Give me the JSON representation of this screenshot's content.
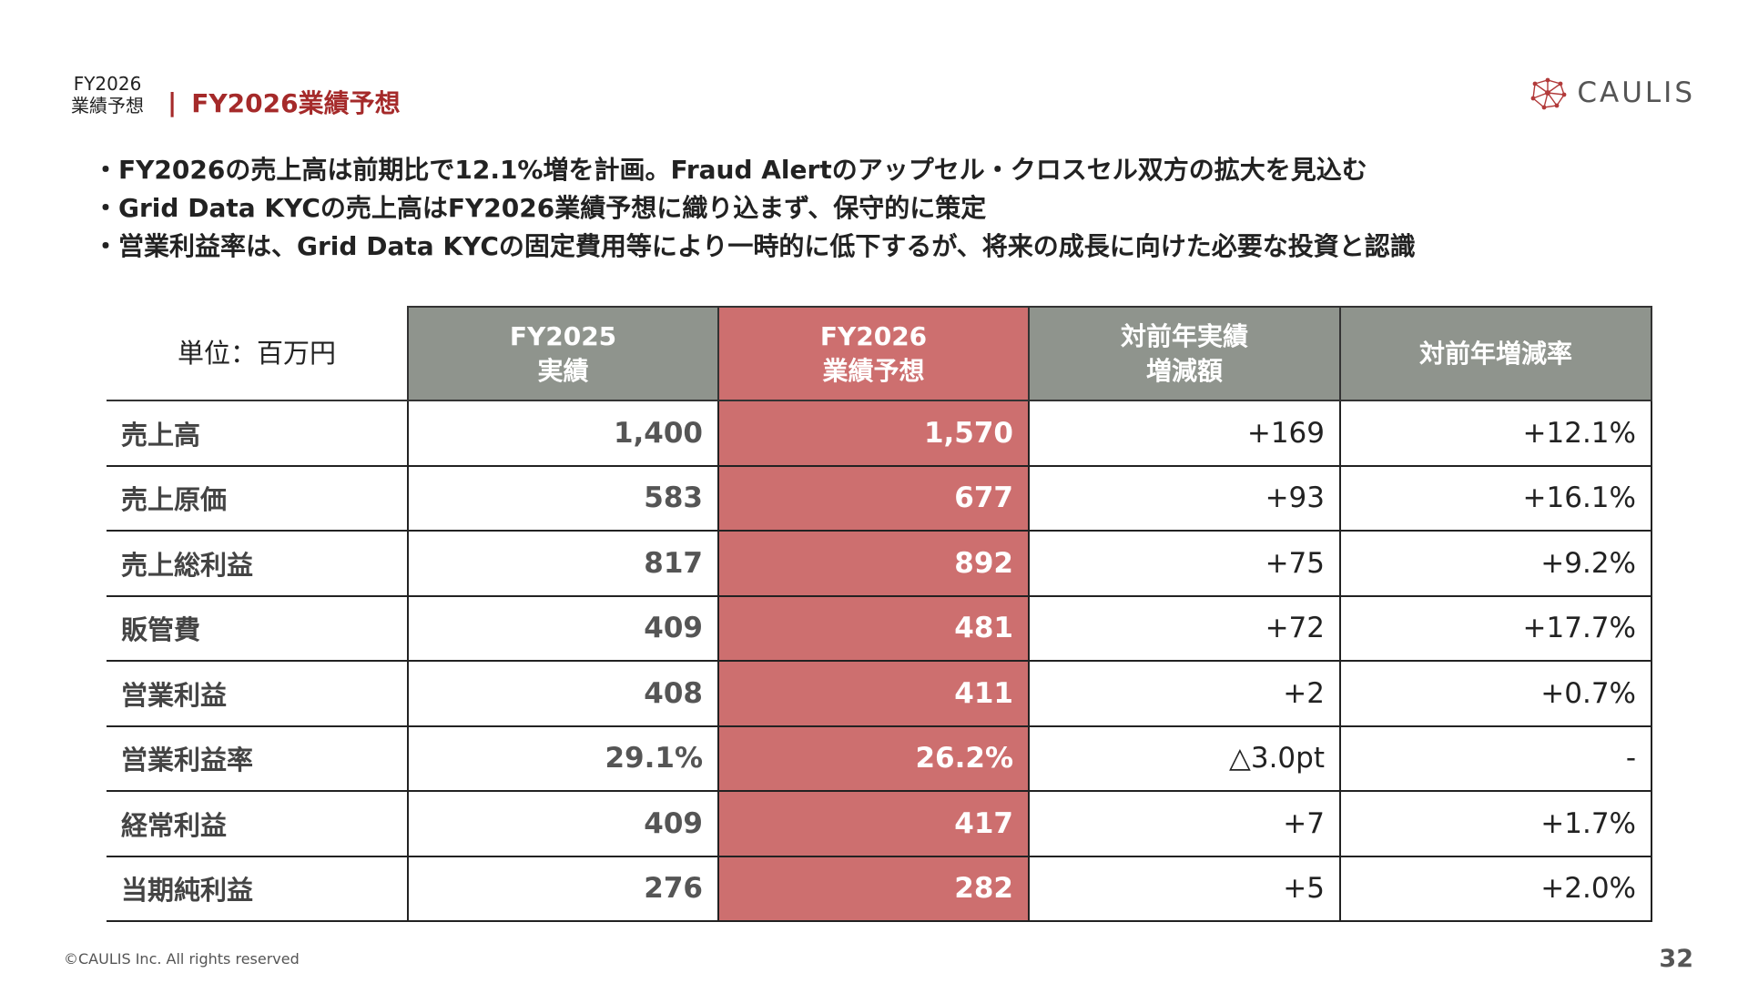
{
  "header": {
    "section_tag_line1": "FY2026",
    "section_tag_line2": "業績予想",
    "separator": "|",
    "title": "FY2026業績予想",
    "logo_text": "CAULIS",
    "accent_color": "#a52a2a"
  },
  "bullets": [
    "FY2026の売上高は前期比で12.1%増を計画。Fraud Alertのアップセル・クロスセル双方の拡大を見込む",
    "Grid Data KYCの売上高はFY2026業績予想に織り込まず、保守的に策定",
    "営業利益率は、Grid Data KYCの固定費用等により一時的に低下するが、将来の成長に向けた必要な投資と認識"
  ],
  "table": {
    "unit_label": "単位：百万円",
    "columns": [
      {
        "line1": "FY2025",
        "line2": "実績"
      },
      {
        "line1": "FY2026",
        "line2": "業績予想"
      },
      {
        "line1": "対前年実績",
        "line2": "増減額"
      },
      {
        "line1": "対前年増減率",
        "line2": ""
      }
    ],
    "rows": [
      {
        "label": "売上高",
        "fy2025": "1,400",
        "fy2026": "1,570",
        "change": "+169",
        "rate": "+12.1%"
      },
      {
        "label": "売上原価",
        "fy2025": "583",
        "fy2026": "677",
        "change": "+93",
        "rate": "+16.1%"
      },
      {
        "label": "売上総利益",
        "fy2025": "817",
        "fy2026": "892",
        "change": "+75",
        "rate": "+9.2%"
      },
      {
        "label": "販管費",
        "fy2025": "409",
        "fy2026": "481",
        "change": "+72",
        "rate": "+17.7%"
      },
      {
        "label": "営業利益",
        "fy2025": "408",
        "fy2026": "411",
        "change": "+2",
        "rate": "+0.7%"
      },
      {
        "label": "営業利益率",
        "fy2025": "29.1%",
        "fy2026": "26.2%",
        "change": "△3.0pt",
        "rate": "-"
      },
      {
        "label": "経常利益",
        "fy2025": "409",
        "fy2026": "417",
        "change": "+7",
        "rate": "+1.7%"
      },
      {
        "label": "当期純利益",
        "fy2025": "276",
        "fy2026": "282",
        "change": "+5",
        "rate": "+2.0%"
      }
    ],
    "header_gray": "#8f948d",
    "forecast_red": "#cd6f6f"
  },
  "footer": {
    "copyright": "©CAULIS Inc. All rights reserved",
    "page_number": "32"
  }
}
